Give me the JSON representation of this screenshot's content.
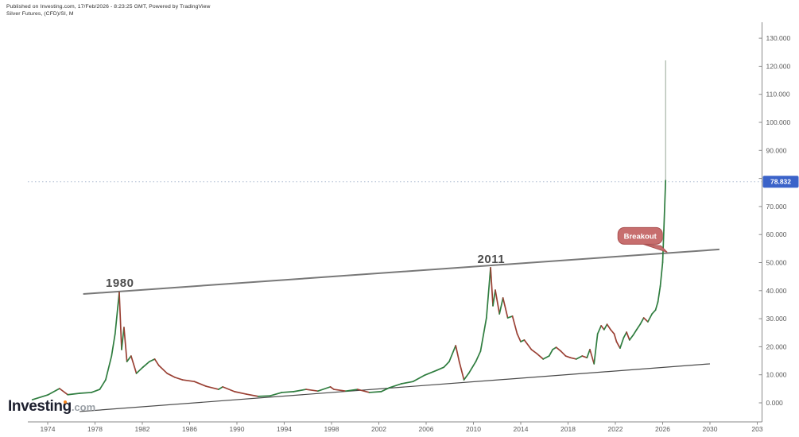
{
  "header": {
    "published": "Published on Investing.com, 17/Feb/2026 - 8:23:25 GMT, Powered by TradingView",
    "instrument": "Silver Futures, (CFD)/SI, M"
  },
  "logo": {
    "brand": "Investing",
    "tld": ".com"
  },
  "chart_data": {
    "type": "line",
    "title": "Silver Futures, (CFD)/SI, M",
    "x_ticks": [
      "1974",
      "1978",
      "1982",
      "1986",
      "1990",
      "1994",
      "1998",
      "2002",
      "2006",
      "2010",
      "2014",
      "2018",
      "2022",
      "2026",
      "2030",
      "203"
    ],
    "x_tick_start_year": 1974,
    "x_tick_interval_years": 4,
    "y_ticks": [
      "130.000",
      "120.000",
      "110.000",
      "100.000",
      "90.000",
      "80.000",
      "70.000",
      "60.000",
      "50.000",
      "40.000",
      "30.000",
      "20.000",
      "10.000",
      "0.000"
    ],
    "y_tick_values": [
      130,
      120,
      110,
      100,
      90,
      80,
      70,
      60,
      50,
      40,
      30,
      20,
      10,
      0
    ],
    "ylim": [
      0,
      130
    ],
    "grid": "off",
    "last_price_label": "78.832",
    "last_price_value": 78.832,
    "series": [
      [
        1972.7,
        1.1
      ],
      [
        1974.0,
        2.8
      ],
      [
        1975.0,
        5.1
      ],
      [
        1975.7,
        2.9
      ],
      [
        1976.7,
        3.4
      ],
      [
        1977.7,
        3.7
      ],
      [
        1978.4,
        4.8
      ],
      [
        1978.9,
        8.2
      ],
      [
        1979.4,
        16.7
      ],
      [
        1979.7,
        24.6
      ],
      [
        1980.05,
        39.4
      ],
      [
        1980.25,
        19.0
      ],
      [
        1980.45,
        26.9
      ],
      [
        1980.7,
        14.7
      ],
      [
        1981.05,
        16.7
      ],
      [
        1981.5,
        10.5
      ],
      [
        1982.05,
        12.7
      ],
      [
        1982.6,
        14.7
      ],
      [
        1983.05,
        15.6
      ],
      [
        1983.4,
        13.3
      ],
      [
        1984.1,
        10.5
      ],
      [
        1984.75,
        9.1
      ],
      [
        1985.4,
        8.2
      ],
      [
        1986.4,
        7.6
      ],
      [
        1987.4,
        5.9
      ],
      [
        1988.45,
        4.8
      ],
      [
        1988.8,
        5.7
      ],
      [
        1989.8,
        4.0
      ],
      [
        1990.8,
        3.1
      ],
      [
        1991.8,
        2.3
      ],
      [
        1992.8,
        2.5
      ],
      [
        1993.8,
        3.7
      ],
      [
        1994.8,
        4.0
      ],
      [
        1995.85,
        4.8
      ],
      [
        1996.85,
        4.2
      ],
      [
        1997.9,
        5.7
      ],
      [
        1998.2,
        4.8
      ],
      [
        1999.2,
        4.2
      ],
      [
        2000.2,
        4.8
      ],
      [
        2001.2,
        3.7
      ],
      [
        2002.2,
        4.0
      ],
      [
        2002.9,
        5.4
      ],
      [
        2003.9,
        6.8
      ],
      [
        2004.9,
        7.6
      ],
      [
        2005.9,
        9.9
      ],
      [
        2006.9,
        11.6
      ],
      [
        2007.5,
        12.7
      ],
      [
        2007.95,
        14.7
      ],
      [
        2008.5,
        20.4
      ],
      [
        2008.8,
        14.7
      ],
      [
        2009.2,
        8.2
      ],
      [
        2009.6,
        10.5
      ],
      [
        2010.2,
        14.7
      ],
      [
        2010.6,
        18.4
      ],
      [
        2011.1,
        30.3
      ],
      [
        2011.45,
        48.2
      ],
      [
        2011.65,
        34.6
      ],
      [
        2011.85,
        40.2
      ],
      [
        2012.2,
        31.7
      ],
      [
        2012.5,
        37.4
      ],
      [
        2012.9,
        30.3
      ],
      [
        2013.3,
        30.9
      ],
      [
        2013.7,
        24.6
      ],
      [
        2014.0,
        21.8
      ],
      [
        2014.3,
        22.4
      ],
      [
        2014.9,
        19.0
      ],
      [
        2015.35,
        17.6
      ],
      [
        2015.9,
        15.6
      ],
      [
        2016.4,
        16.7
      ],
      [
        2016.7,
        19.0
      ],
      [
        2017.0,
        19.8
      ],
      [
        2017.4,
        18.4
      ],
      [
        2017.8,
        16.7
      ],
      [
        2018.2,
        16.1
      ],
      [
        2018.7,
        15.6
      ],
      [
        2019.2,
        16.7
      ],
      [
        2019.6,
        16.1
      ],
      [
        2019.85,
        19.0
      ],
      [
        2020.2,
        13.9
      ],
      [
        2020.5,
        24.6
      ],
      [
        2020.8,
        27.5
      ],
      [
        2021.05,
        26.1
      ],
      [
        2021.3,
        28.0
      ],
      [
        2021.6,
        26.1
      ],
      [
        2021.9,
        24.6
      ],
      [
        2022.1,
        21.8
      ],
      [
        2022.4,
        19.5
      ],
      [
        2022.7,
        23.2
      ],
      [
        2022.95,
        25.2
      ],
      [
        2023.2,
        22.4
      ],
      [
        2023.5,
        24.1
      ],
      [
        2023.8,
        26.1
      ],
      [
        2024.1,
        28.0
      ],
      [
        2024.4,
        30.3
      ],
      [
        2024.75,
        28.9
      ],
      [
        2025.1,
        31.7
      ],
      [
        2025.4,
        33.1
      ],
      [
        2025.6,
        36.0
      ],
      [
        2025.8,
        41.6
      ],
      [
        2026.0,
        50.1
      ],
      [
        2026.1,
        61.5
      ],
      [
        2026.25,
        79.3
      ]
    ],
    "final_wick": {
      "year": 2026.25,
      "high": 122.1,
      "body_top": 79.3
    },
    "trendlines": {
      "upper": [
        [
          1977.0,
          38.8
        ],
        [
          2030.8,
          54.7
        ]
      ],
      "lower": [
        [
          1976.7,
          -3.1
        ],
        [
          2030.0,
          13.9
        ]
      ]
    },
    "annotations": [
      {
        "label": "1980",
        "year": 1980.1,
        "price": 41.4
      },
      {
        "label": "2011",
        "year": 2011.5,
        "price": 49.9
      }
    ],
    "breakout": {
      "label": "Breakout",
      "year": 2026.25,
      "price": 54
    },
    "colors": {
      "up": "#2f7d3f",
      "down": "#9a4034",
      "trendline_upper": "#787878",
      "trendline_lower": "#4a4a4a",
      "badge": "#3b63c9",
      "dotted_line": "#aebcd2",
      "wick": "#9fae9f",
      "axis": "#8a8a8a"
    }
  }
}
